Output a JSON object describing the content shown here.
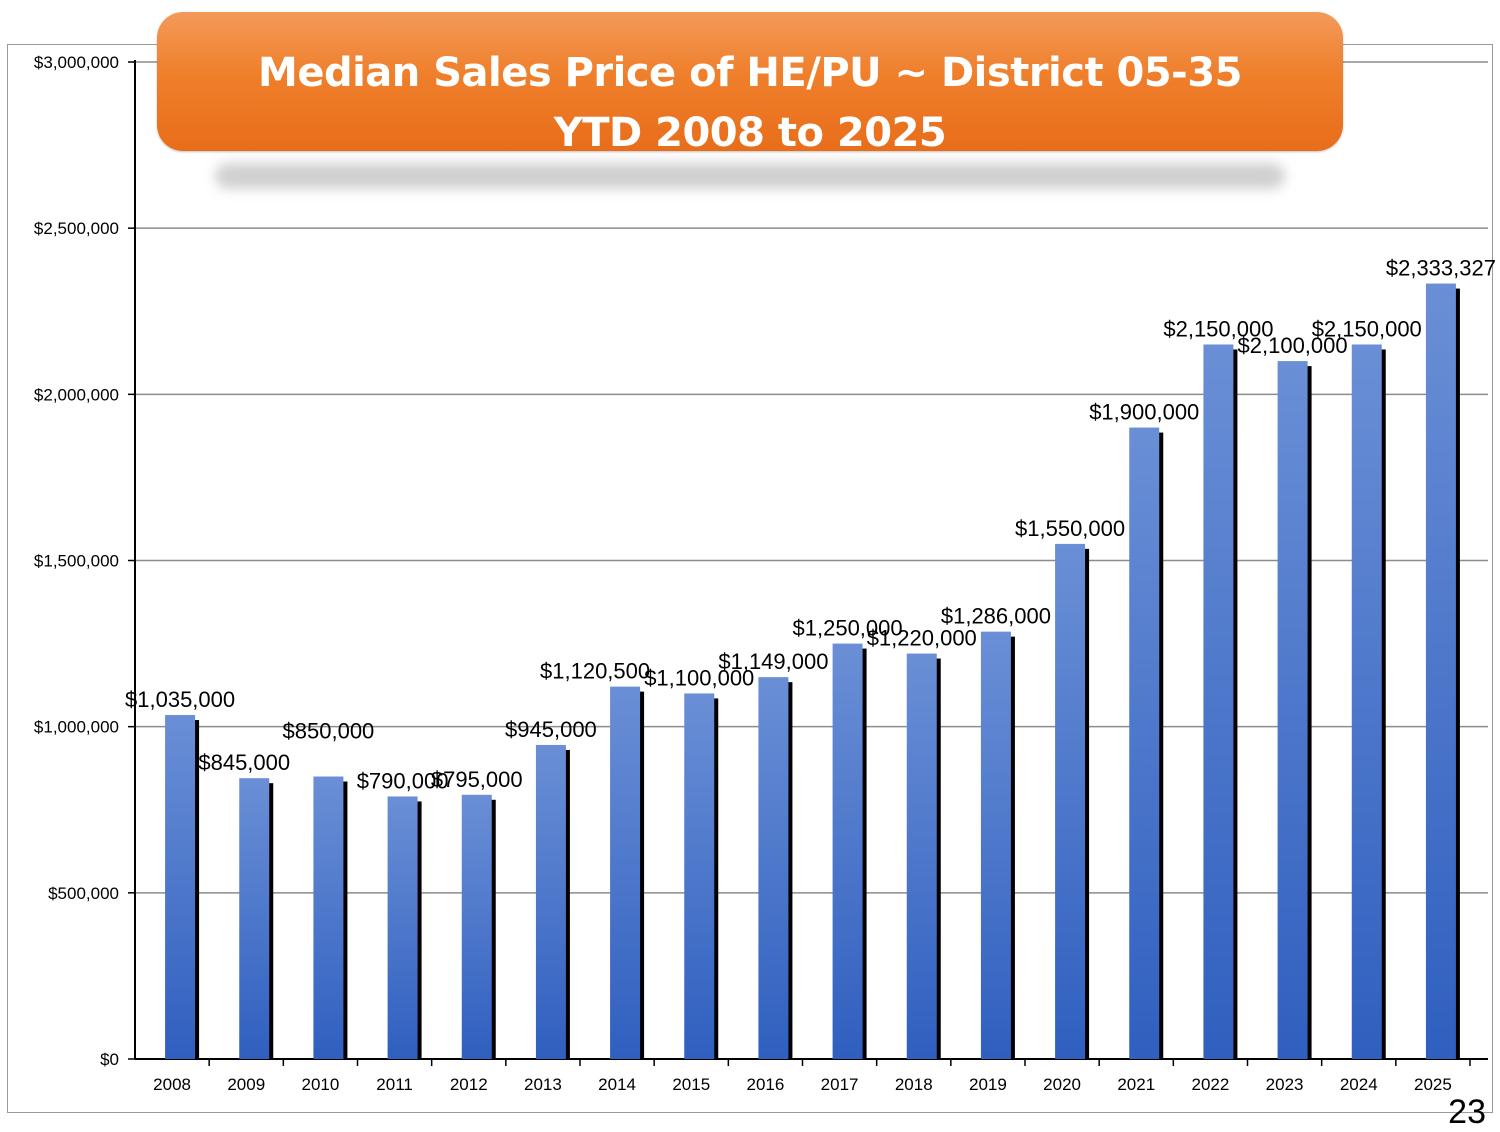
{
  "title": {
    "line1": "Median Sales Price of HE/PU ~ District 05-35",
    "line2": "YTD 2008 to 2025"
  },
  "page_number": "23",
  "colors": {
    "banner": "#ef7f2b",
    "bar_top": "#6a8fd6",
    "bar_bottom": "#2f5fbf",
    "bar_shadow": "#000000",
    "gridline": "#8c8c8c"
  },
  "chart_data": {
    "type": "bar",
    "title": "Median Sales Price of HE/PU ~ District 05-35 YTD 2008 to 2025",
    "xlabel": "",
    "ylabel": "",
    "ylim": [
      0,
      3000000
    ],
    "yticks": [
      0,
      500000,
      1000000,
      1500000,
      2000000,
      2500000,
      3000000
    ],
    "ytick_labels": [
      "$0",
      "$500,000",
      "$1,000,000",
      "$1,500,000",
      "$2,000,000",
      "$2,500,000",
      "$3,000,000"
    ],
    "grid": true,
    "legend": "none",
    "categories": [
      "2008",
      "2009",
      "2010",
      "2011",
      "2012",
      "2013",
      "2014",
      "2015",
      "2016",
      "2017",
      "2018",
      "2019",
      "2020",
      "2021",
      "2022",
      "2023",
      "2024",
      "2025"
    ],
    "values": [
      1035000,
      845000,
      850000,
      790000,
      795000,
      945000,
      1120500,
      1100000,
      1149000,
      1250000,
      1220000,
      1286000,
      1550000,
      1900000,
      2150000,
      2100000,
      2150000,
      2333327
    ],
    "data_labels": [
      "$1,035,000",
      "$845,000",
      "$850,000",
      "$790,000",
      "$795,000",
      "$945,000",
      "$1,120,500",
      "$1,100,000",
      "$1,149,000",
      "$1,250,000",
      "$1,220,000",
      "$1,286,000",
      "$1,550,000",
      "$1,900,000",
      "$2,150,000",
      "$2,100,000",
      "$2,150,000",
      "$2,333,327"
    ]
  }
}
